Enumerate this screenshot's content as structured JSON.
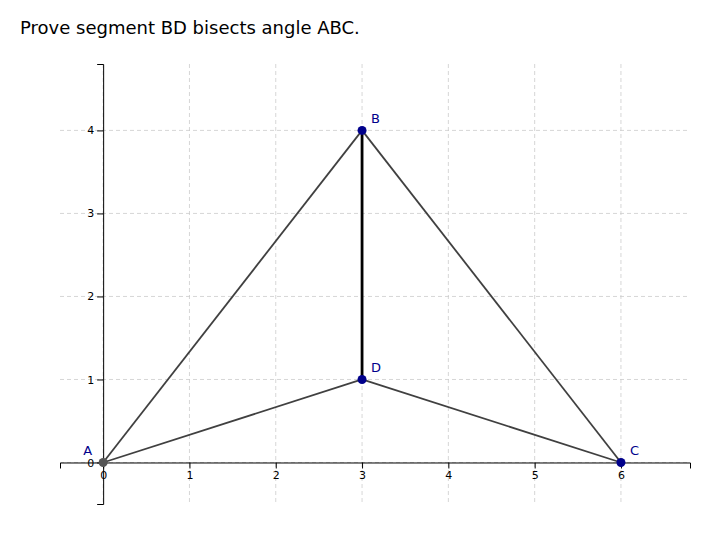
{
  "chart_data": {
    "type": "scatter",
    "title": "Prove segment BD bisects angle ABC.",
    "labels": [
      "A",
      "B",
      "C",
      "D"
    ],
    "x": [
      0,
      3,
      6,
      3
    ],
    "values": [
      0,
      4,
      0,
      1
    ],
    "colors": [
      "#555555",
      "#00008B",
      "#00008B",
      "#00008B"
    ],
    "color": "#00008B",
    "segments": [
      {
        "type": "segment",
        "points": [
          "A",
          "B"
        ],
        "color": "#404040"
      },
      {
        "type": "segment",
        "points": [
          "A",
          "D"
        ],
        "color": "#404040"
      },
      {
        "type": "segment",
        "points": [
          "B",
          "C"
        ],
        "color": "#404040"
      },
      {
        "type": "segment",
        "points": [
          "D",
          "C"
        ],
        "color": "#404040"
      },
      {
        "type": "bisector",
        "points": [
          "B",
          "D"
        ],
        "color": "#000000"
      }
    ],
    "xlim": [
      -0.5,
      6.8
    ],
    "ylim": [
      -0.5,
      4.8
    ],
    "xticks": [
      0,
      1,
      2,
      3,
      4,
      5,
      6
    ],
    "yticks": [
      0,
      1,
      2,
      3,
      4
    ],
    "grid": true
  }
}
